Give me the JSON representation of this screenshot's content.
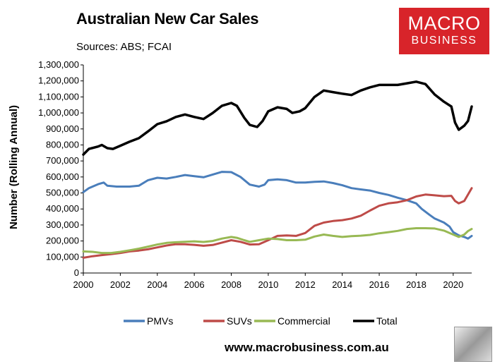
{
  "header": {
    "title": "Australian New Car Sales",
    "subtitle": "Sources: ABS; FCAI"
  },
  "logo": {
    "line1": "MACRO",
    "line2": "BUSINESS",
    "color": "#d8242a"
  },
  "footer": {
    "url": "www.macrobusiness.com.au"
  },
  "chart_data": {
    "type": "line",
    "ylabel": "Number (Rolling Annual)",
    "xlim": [
      2000,
      2021
    ],
    "ylim": [
      0,
      1300000
    ],
    "xticks": [
      2000,
      2002,
      2004,
      2006,
      2008,
      2010,
      2012,
      2014,
      2016,
      2018,
      2020
    ],
    "yticks": [
      0,
      100000,
      200000,
      300000,
      400000,
      500000,
      600000,
      700000,
      800000,
      900000,
      1000000,
      1100000,
      1200000,
      1300000
    ],
    "ytick_labels": [
      "0",
      "100,000",
      "200,000",
      "300,000",
      "400,000",
      "500,000",
      "600,000",
      "700,000",
      "800,000",
      "900,000",
      "1,000,000",
      "1,100,000",
      "1,200,000",
      "1,300,000"
    ],
    "grid": false,
    "legend_position": "bottom",
    "series": [
      {
        "name": "PMVs",
        "color": "#4a7ebb",
        "points": [
          [
            2000,
            505000
          ],
          [
            2000.3,
            530000
          ],
          [
            2000.8,
            555000
          ],
          [
            2001.1,
            565000
          ],
          [
            2001.3,
            545000
          ],
          [
            2001.8,
            540000
          ],
          [
            2002.5,
            540000
          ],
          [
            2003,
            545000
          ],
          [
            2003.5,
            580000
          ],
          [
            2004,
            595000
          ],
          [
            2004.5,
            590000
          ],
          [
            2005,
            600000
          ],
          [
            2005.5,
            612000
          ],
          [
            2006,
            605000
          ],
          [
            2006.5,
            598000
          ],
          [
            2007,
            615000
          ],
          [
            2007.5,
            632000
          ],
          [
            2008,
            630000
          ],
          [
            2008.5,
            600000
          ],
          [
            2009,
            552000
          ],
          [
            2009.5,
            540000
          ],
          [
            2009.8,
            552000
          ],
          [
            2010,
            580000
          ],
          [
            2010.5,
            585000
          ],
          [
            2011,
            580000
          ],
          [
            2011.5,
            565000
          ],
          [
            2012,
            565000
          ],
          [
            2012.5,
            570000
          ],
          [
            2013,
            572000
          ],
          [
            2013.5,
            562000
          ],
          [
            2014,
            548000
          ],
          [
            2014.5,
            530000
          ],
          [
            2015,
            522000
          ],
          [
            2015.5,
            515000
          ],
          [
            2016,
            500000
          ],
          [
            2016.5,
            488000
          ],
          [
            2017,
            470000
          ],
          [
            2017.5,
            455000
          ],
          [
            2018,
            435000
          ],
          [
            2018.3,
            400000
          ],
          [
            2018.7,
            365000
          ],
          [
            2019,
            340000
          ],
          [
            2019.5,
            315000
          ],
          [
            2019.8,
            290000
          ],
          [
            2020,
            255000
          ],
          [
            2020.3,
            235000
          ],
          [
            2020.6,
            225000
          ],
          [
            2020.8,
            215000
          ],
          [
            2021,
            232000
          ]
        ]
      },
      {
        "name": "SUVs",
        "color": "#be4b48",
        "points": [
          [
            2000,
            95000
          ],
          [
            2000.5,
            105000
          ],
          [
            2001,
            112000
          ],
          [
            2001.5,
            118000
          ],
          [
            2002,
            125000
          ],
          [
            2002.5,
            135000
          ],
          [
            2003,
            140000
          ],
          [
            2003.5,
            148000
          ],
          [
            2004,
            160000
          ],
          [
            2004.5,
            172000
          ],
          [
            2005,
            180000
          ],
          [
            2005.5,
            180000
          ],
          [
            2006,
            176000
          ],
          [
            2006.5,
            170000
          ],
          [
            2007,
            175000
          ],
          [
            2007.5,
            190000
          ],
          [
            2008,
            205000
          ],
          [
            2008.5,
            195000
          ],
          [
            2009,
            178000
          ],
          [
            2009.5,
            180000
          ],
          [
            2010,
            205000
          ],
          [
            2010.5,
            232000
          ],
          [
            2011,
            235000
          ],
          [
            2011.5,
            232000
          ],
          [
            2012,
            250000
          ],
          [
            2012.5,
            295000
          ],
          [
            2013,
            315000
          ],
          [
            2013.5,
            325000
          ],
          [
            2014,
            330000
          ],
          [
            2014.5,
            340000
          ],
          [
            2015,
            358000
          ],
          [
            2015.5,
            390000
          ],
          [
            2016,
            420000
          ],
          [
            2016.5,
            435000
          ],
          [
            2017,
            442000
          ],
          [
            2017.5,
            455000
          ],
          [
            2018,
            478000
          ],
          [
            2018.5,
            490000
          ],
          [
            2019,
            485000
          ],
          [
            2019.5,
            480000
          ],
          [
            2019.9,
            482000
          ],
          [
            2020.1,
            450000
          ],
          [
            2020.3,
            435000
          ],
          [
            2020.6,
            450000
          ],
          [
            2020.8,
            490000
          ],
          [
            2021,
            530000
          ]
        ]
      },
      {
        "name": "Commercial",
        "color": "#98b954",
        "points": [
          [
            2000,
            135000
          ],
          [
            2000.5,
            132000
          ],
          [
            2001,
            125000
          ],
          [
            2001.5,
            125000
          ],
          [
            2002,
            132000
          ],
          [
            2002.5,
            142000
          ],
          [
            2003,
            152000
          ],
          [
            2003.5,
            165000
          ],
          [
            2004,
            178000
          ],
          [
            2004.5,
            188000
          ],
          [
            2005,
            192000
          ],
          [
            2005.5,
            195000
          ],
          [
            2006,
            198000
          ],
          [
            2006.5,
            194000
          ],
          [
            2007,
            200000
          ],
          [
            2007.5,
            215000
          ],
          [
            2008,
            225000
          ],
          [
            2008.3,
            220000
          ],
          [
            2008.7,
            205000
          ],
          [
            2009,
            195000
          ],
          [
            2009.5,
            205000
          ],
          [
            2010,
            215000
          ],
          [
            2010.5,
            212000
          ],
          [
            2011,
            205000
          ],
          [
            2011.5,
            205000
          ],
          [
            2012,
            208000
          ],
          [
            2012.5,
            228000
          ],
          [
            2013,
            240000
          ],
          [
            2013.5,
            232000
          ],
          [
            2014,
            225000
          ],
          [
            2014.5,
            230000
          ],
          [
            2015,
            233000
          ],
          [
            2015.5,
            238000
          ],
          [
            2016,
            248000
          ],
          [
            2016.5,
            255000
          ],
          [
            2017,
            263000
          ],
          [
            2017.5,
            275000
          ],
          [
            2018,
            280000
          ],
          [
            2018.5,
            280000
          ],
          [
            2019,
            278000
          ],
          [
            2019.5,
            265000
          ],
          [
            2020,
            240000
          ],
          [
            2020.3,
            225000
          ],
          [
            2020.6,
            240000
          ],
          [
            2020.8,
            262000
          ],
          [
            2021,
            275000
          ]
        ]
      },
      {
        "name": "Total",
        "color": "#000000",
        "points": [
          [
            2000,
            740000
          ],
          [
            2000.3,
            775000
          ],
          [
            2000.8,
            790000
          ],
          [
            2001,
            800000
          ],
          [
            2001.3,
            780000
          ],
          [
            2001.6,
            775000
          ],
          [
            2002,
            795000
          ],
          [
            2002.5,
            820000
          ],
          [
            2003,
            842000
          ],
          [
            2003.5,
            885000
          ],
          [
            2004,
            930000
          ],
          [
            2004.5,
            948000
          ],
          [
            2005,
            975000
          ],
          [
            2005.5,
            990000
          ],
          [
            2006,
            975000
          ],
          [
            2006.5,
            962000
          ],
          [
            2007,
            1000000
          ],
          [
            2007.5,
            1045000
          ],
          [
            2008,
            1062000
          ],
          [
            2008.3,
            1045000
          ],
          [
            2008.7,
            970000
          ],
          [
            2009,
            925000
          ],
          [
            2009.4,
            912000
          ],
          [
            2009.7,
            950000
          ],
          [
            2010,
            1010000
          ],
          [
            2010.5,
            1035000
          ],
          [
            2011,
            1025000
          ],
          [
            2011.3,
            1000000
          ],
          [
            2011.7,
            1010000
          ],
          [
            2012,
            1030000
          ],
          [
            2012.5,
            1100000
          ],
          [
            2013,
            1140000
          ],
          [
            2013.5,
            1130000
          ],
          [
            2014,
            1120000
          ],
          [
            2014.5,
            1112000
          ],
          [
            2015,
            1140000
          ],
          [
            2015.5,
            1160000
          ],
          [
            2016,
            1175000
          ],
          [
            2016.5,
            1175000
          ],
          [
            2017,
            1175000
          ],
          [
            2017.5,
            1185000
          ],
          [
            2018,
            1195000
          ],
          [
            2018.5,
            1180000
          ],
          [
            2019,
            1115000
          ],
          [
            2019.5,
            1070000
          ],
          [
            2019.9,
            1040000
          ],
          [
            2020.1,
            940000
          ],
          [
            2020.3,
            895000
          ],
          [
            2020.6,
            920000
          ],
          [
            2020.8,
            950000
          ],
          [
            2021,
            1040000
          ]
        ]
      }
    ]
  }
}
